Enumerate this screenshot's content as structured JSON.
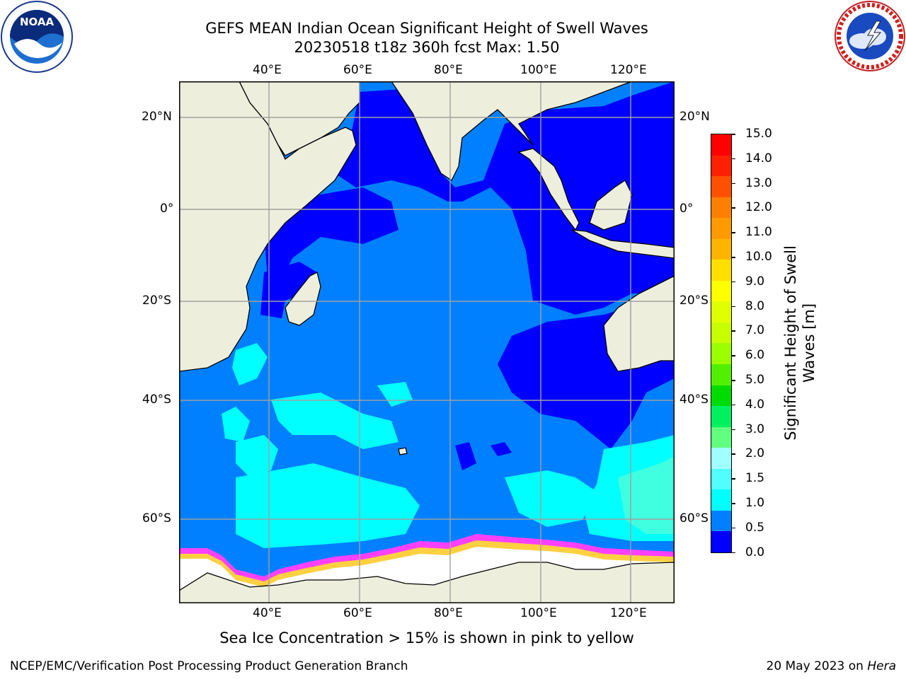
{
  "header": {
    "title_line1": "GEFS MEAN Indian Ocean Significant Height of Swell Waves",
    "title_line2": "20230518 t18z 360h fcst   Max: 1.50"
  },
  "logos": {
    "left": {
      "name": "NOARA logo",
      "text": "NOAA",
      "ring_text": "NATIONAL OCEANIC AND ATMOSPHERIC ADMINISTRATION · U.S. DEPARTMENT OF COMMERCE"
    },
    "right": {
      "name": "national-weather-service-logo",
      "ring_text": "NATIONAL WEATHER SERVICE"
    }
  },
  "map": {
    "lon_labels": [
      "40°E",
      "60°E",
      "80°E",
      "100°E",
      "120°E"
    ],
    "lat_labels": [
      "20°N",
      "0°",
      "20°S",
      "40°S",
      "60°S"
    ],
    "colors": {
      "land": "#eeeedd",
      "ocean_base": "#0080ff",
      "calm": "#0000ff",
      "swell_1": "#00ffff",
      "swell_2": "#40ffe0",
      "ice": "#ffffff",
      "ice_edge_pink": "#ff40ff",
      "ice_edge_yellow": "#ffd040"
    }
  },
  "colorbar": {
    "label_line1": "Significant Height of Swell",
    "label_line2": "Waves [m]",
    "ticks": [
      "15.0",
      "14.0",
      "13.0",
      "12.0",
      "11.0",
      "10.0",
      "9.0",
      "8.0",
      "7.0",
      "6.0",
      "5.0",
      "4.0",
      "3.0",
      "2.0",
      "1.5",
      "1.0",
      "0.5",
      "0.0"
    ],
    "colors_top_to_bottom": [
      "#ff0000",
      "#ff2000",
      "#ff5000",
      "#ff8000",
      "#ff9a00",
      "#ffb400",
      "#ffe000",
      "#ffff00",
      "#e0ff00",
      "#c8ff00",
      "#9cff00",
      "#50f000",
      "#00dc00",
      "#00f060",
      "#60ff80",
      "#a0ffff",
      "#50ffff",
      "#00ffff",
      "#0080ff",
      "#0000ff"
    ]
  },
  "caption": "Sea Ice Concentration > 15% is shown in pink to yellow",
  "footer": {
    "left": "NCEP/EMC/Verification Post Processing Product Generation Branch",
    "right_date": "20 May 2023 on ",
    "right_host": "Hera"
  }
}
